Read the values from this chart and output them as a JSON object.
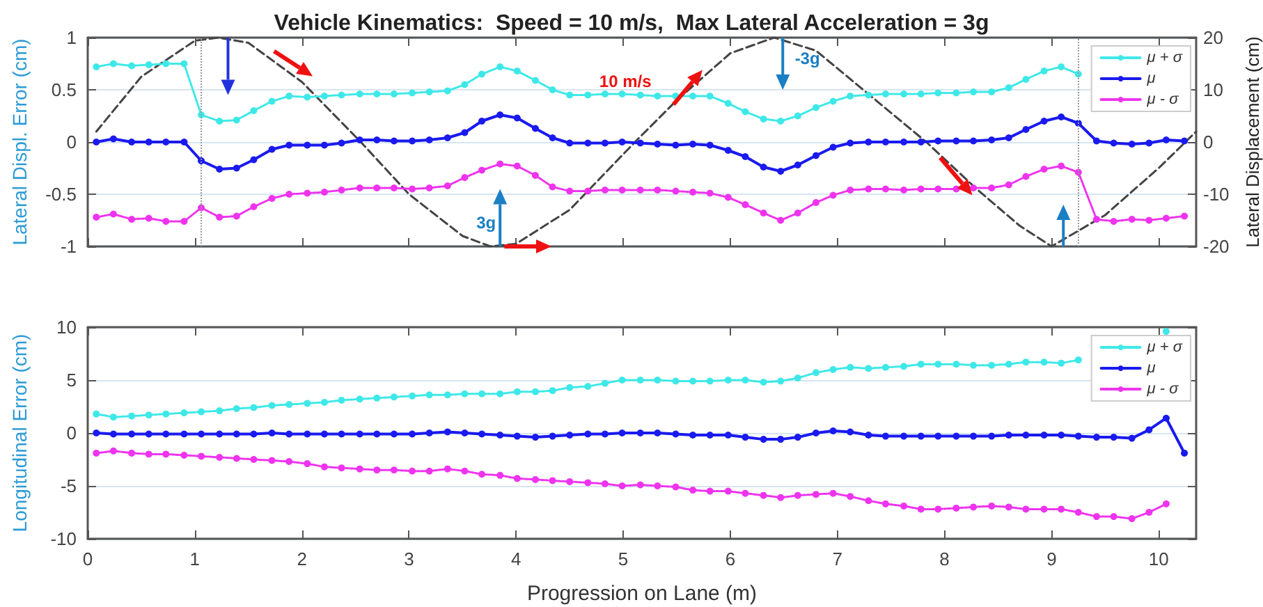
{
  "chart_data": [
    {
      "type": "line",
      "title": "Vehicle Kinematics:  Speed = 10 m/s,  Max Lateral Acceleration = 3g",
      "ylabel": "Lateral Displ. Error (cm)",
      "y2label": "Lateral Displacement (cm)",
      "x": [
        0.08,
        0.24,
        0.41,
        0.57,
        0.73,
        0.9,
        1.06,
        1.23,
        1.39,
        1.55,
        1.72,
        1.88,
        2.05,
        2.21,
        2.37,
        2.54,
        2.7,
        2.86,
        3.03,
        3.19,
        3.36,
        3.52,
        3.68,
        3.85,
        4.01,
        4.18,
        4.34,
        4.5,
        4.67,
        4.83,
        4.99,
        5.16,
        5.32,
        5.49,
        5.65,
        5.81,
        5.98,
        6.14,
        6.31,
        6.47,
        6.63,
        6.8,
        6.96,
        7.12,
        7.29,
        7.45,
        7.62,
        7.78,
        7.94,
        8.11,
        8.27,
        8.44,
        8.6,
        8.76,
        8.93,
        9.09,
        9.25,
        9.42,
        9.58,
        9.75,
        9.91,
        10.07,
        10.24
      ],
      "series": [
        {
          "name": "μ + σ",
          "color": "#3ee8e8",
          "line_style": "dotted",
          "marker": "circle",
          "values": [
            0.72,
            0.75,
            0.73,
            0.74,
            0.75,
            0.75,
            0.26,
            0.2,
            0.21,
            0.3,
            0.39,
            0.44,
            0.43,
            0.44,
            0.45,
            0.46,
            0.46,
            0.46,
            0.47,
            0.48,
            0.49,
            0.55,
            0.65,
            0.72,
            0.68,
            0.59,
            0.5,
            0.45,
            0.45,
            0.46,
            0.46,
            0.45,
            0.44,
            0.44,
            0.44,
            0.44,
            0.37,
            0.29,
            0.22,
            0.2,
            0.25,
            0.33,
            0.39,
            0.44,
            0.45,
            0.46,
            0.46,
            0.46,
            0.47,
            0.47,
            0.48,
            0.48,
            0.52,
            0.6,
            0.68,
            0.72,
            0.65,
            null,
            null,
            null,
            null,
            null,
            null
          ]
        },
        {
          "name": "μ",
          "color": "#1a1aee",
          "line_style": "solid",
          "marker": "circle",
          "values": [
            0,
            0.03,
            0,
            0,
            0,
            0,
            -0.18,
            -0.26,
            -0.25,
            -0.17,
            -0.07,
            -0.03,
            -0.03,
            -0.03,
            -0.01,
            0.02,
            0.02,
            0.01,
            0.01,
            0.02,
            0.04,
            0.09,
            0.2,
            0.26,
            0.23,
            0.13,
            0.04,
            -0.01,
            -0.01,
            -0.01,
            0,
            -0.01,
            -0.02,
            -0.03,
            -0.02,
            -0.03,
            -0.08,
            -0.14,
            -0.24,
            -0.28,
            -0.22,
            -0.13,
            -0.05,
            -0.01,
            0,
            0,
            0,
            0,
            0.01,
            0.01,
            0.01,
            0.02,
            0.04,
            0.12,
            0.2,
            0.24,
            0.18,
            0.01,
            -0.01,
            -0.02,
            -0.01,
            0.02,
            0.01
          ]
        },
        {
          "name": "μ - σ",
          "color": "#ee33ee",
          "line_style": "dotted",
          "marker": "circle",
          "values": [
            -0.72,
            -0.69,
            -0.74,
            -0.73,
            -0.76,
            -0.76,
            -0.63,
            -0.72,
            -0.71,
            -0.62,
            -0.54,
            -0.5,
            -0.49,
            -0.48,
            -0.46,
            -0.44,
            -0.44,
            -0.44,
            -0.45,
            -0.44,
            -0.42,
            -0.34,
            -0.27,
            -0.21,
            -0.23,
            -0.32,
            -0.43,
            -0.47,
            -0.47,
            -0.46,
            -0.46,
            -0.46,
            -0.46,
            -0.47,
            -0.48,
            -0.49,
            -0.53,
            -0.6,
            -0.68,
            -0.75,
            -0.68,
            -0.58,
            -0.51,
            -0.46,
            -0.45,
            -0.45,
            -0.46,
            -0.45,
            -0.45,
            -0.45,
            -0.44,
            -0.44,
            -0.41,
            -0.33,
            -0.26,
            -0.23,
            -0.29,
            -0.74,
            -0.76,
            -0.74,
            -0.75,
            -0.73,
            -0.71
          ]
        },
        {
          "color": "#444444",
          "line_style": "dashed",
          "marker": "none",
          "axis": "y2",
          "x": [
            0.08,
            0.5,
            1.0,
            1.22,
            1.5,
            2.0,
            2.55,
            3.0,
            3.5,
            3.76,
            4.0,
            4.5,
            5.11,
            5.5,
            6.0,
            6.41,
            6.8,
            7.3,
            7.83,
            8.3,
            8.7,
            9.0,
            9.5,
            10.0,
            10.35
          ],
          "values": [
            2,
            12.5,
            19.4,
            20,
            19,
            11.5,
            0,
            -10,
            -18,
            -20,
            -19.5,
            -13,
            0,
            8,
            17,
            20,
            17.5,
            9,
            0,
            -9,
            -16,
            -20,
            -14,
            -5,
            2
          ]
        }
      ],
      "xlim": [
        0,
        10.35
      ],
      "xticks": [
        0,
        1,
        2,
        3,
        4,
        5,
        6,
        7,
        8,
        9,
        10
      ],
      "ylim": [
        -1,
        1
      ],
      "yticks": [
        -1,
        -0.5,
        0,
        0.5,
        1
      ],
      "y2lim": [
        -20,
        20
      ],
      "y2ticks": [
        -20,
        -10,
        0,
        10,
        20
      ],
      "ref_lines": [
        {
          "axis": "x",
          "value": 1.06,
          "color": "#999999",
          "line_style": "dotted"
        },
        {
          "axis": "x",
          "value": 9.25,
          "color": "#999999",
          "line_style": "dotted"
        }
      ],
      "annotations": [
        "3g",
        "-3g",
        "10 m/s"
      ],
      "grid": "y",
      "legend": "top right",
      "tick_labels": "y"
    },
    {
      "type": "line",
      "xlabel": "Progression on Lane (m)",
      "ylabel": "Longitudinal Error (cm)",
      "x": [
        0.08,
        0.24,
        0.41,
        0.57,
        0.73,
        0.9,
        1.06,
        1.23,
        1.39,
        1.55,
        1.72,
        1.88,
        2.05,
        2.21,
        2.37,
        2.54,
        2.7,
        2.86,
        3.03,
        3.19,
        3.36,
        3.52,
        3.68,
        3.85,
        4.01,
        4.18,
        4.34,
        4.5,
        4.67,
        4.83,
        4.99,
        5.16,
        5.32,
        5.49,
        5.65,
        5.81,
        5.98,
        6.14,
        6.31,
        6.47,
        6.63,
        6.8,
        6.96,
        7.12,
        7.29,
        7.45,
        7.62,
        7.78,
        7.94,
        8.11,
        8.27,
        8.44,
        8.6,
        8.76,
        8.93,
        9.09,
        9.25,
        9.42,
        9.58,
        9.75,
        9.91,
        10.07,
        10.24
      ],
      "series": [
        {
          "name": "μ + σ",
          "color": "#3ee8e8",
          "line_style": "dotted",
          "marker": "circle",
          "values": [
            1.8,
            1.5,
            1.6,
            1.7,
            1.8,
            1.9,
            2.0,
            2.1,
            2.3,
            2.4,
            2.6,
            2.7,
            2.8,
            2.9,
            3.1,
            3.2,
            3.3,
            3.4,
            3.5,
            3.6,
            3.6,
            3.7,
            3.7,
            3.7,
            3.9,
            3.9,
            4.0,
            4.3,
            4.4,
            4.7,
            5.0,
            5.0,
            5.0,
            4.9,
            4.9,
            4.9,
            5.0,
            5.0,
            4.8,
            4.9,
            5.2,
            5.7,
            6.0,
            6.2,
            6.1,
            6.2,
            6.3,
            6.5,
            6.5,
            6.5,
            6.4,
            6.4,
            6.5,
            6.7,
            6.7,
            6.6,
            6.9,
            null,
            null,
            null,
            null,
            9.6,
            null
          ]
        },
        {
          "name": "μ",
          "color": "#1a1aee",
          "line_style": "solid",
          "marker": "circle",
          "values": [
            0,
            -0.1,
            -0.1,
            -0.1,
            -0.1,
            -0.1,
            -0.1,
            -0.1,
            -0.1,
            -0.1,
            0,
            -0.1,
            -0.1,
            -0.1,
            -0.1,
            -0.1,
            -0.1,
            -0.1,
            -0.1,
            0,
            0.1,
            0,
            -0.1,
            -0.2,
            -0.3,
            -0.4,
            -0.3,
            -0.2,
            -0.1,
            -0.1,
            0,
            0,
            0,
            -0.1,
            -0.2,
            -0.2,
            -0.2,
            -0.4,
            -0.6,
            -0.6,
            -0.4,
            0,
            0.2,
            0.1,
            -0.2,
            -0.3,
            -0.3,
            -0.3,
            -0.3,
            -0.3,
            -0.3,
            -0.3,
            -0.2,
            -0.2,
            -0.2,
            -0.2,
            -0.3,
            -0.4,
            -0.4,
            -0.5,
            0.3,
            1.4,
            -1.9
          ]
        },
        {
          "name": "μ - σ",
          "color": "#ee33ee",
          "line_style": "dotted",
          "marker": "circle",
          "values": [
            -1.9,
            -1.7,
            -1.9,
            -2.0,
            -2.0,
            -2.1,
            -2.2,
            -2.3,
            -2.4,
            -2.5,
            -2.6,
            -2.7,
            -2.9,
            -3.2,
            -3.3,
            -3.4,
            -3.5,
            -3.5,
            -3.6,
            -3.6,
            -3.4,
            -3.6,
            -3.9,
            -4.0,
            -4.3,
            -4.4,
            -4.5,
            -4.6,
            -4.7,
            -4.8,
            -5.0,
            -4.9,
            -5.0,
            -5.1,
            -5.4,
            -5.5,
            -5.5,
            -5.7,
            -5.9,
            -6.1,
            -5.9,
            -5.8,
            -5.7,
            -6.0,
            -6.4,
            -6.7,
            -6.9,
            -7.2,
            -7.2,
            -7.1,
            -7.0,
            -6.9,
            -7.0,
            -7.2,
            -7.2,
            -7.2,
            -7.5,
            -7.9,
            -7.9,
            -8.1,
            -7.5,
            -6.7,
            null
          ]
        }
      ],
      "xlim": [
        0,
        10.35
      ],
      "xticks": [
        0,
        1,
        2,
        3,
        4,
        5,
        6,
        7,
        8,
        9,
        10
      ],
      "ylim": [
        -10,
        10
      ],
      "yticks": [
        -10,
        -5,
        0,
        5,
        10
      ],
      "grid": "y",
      "legend": "top right"
    }
  ]
}
